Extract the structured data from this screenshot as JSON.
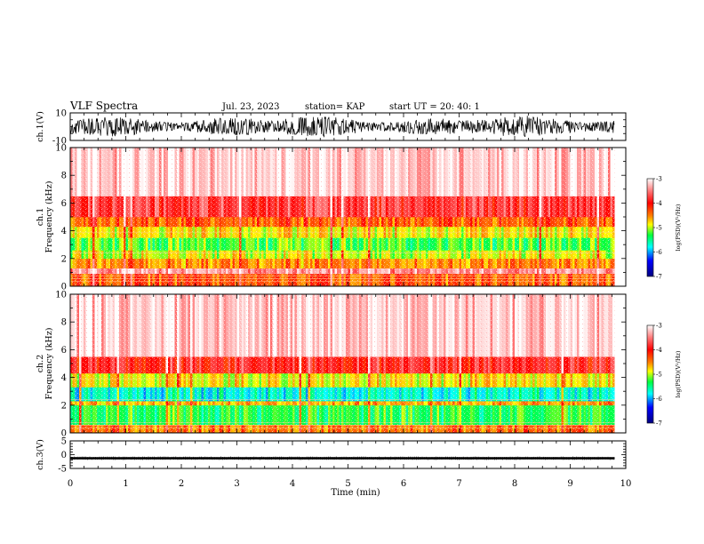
{
  "header": {
    "title": "VLF Spectra",
    "date": "Jul. 23, 2023",
    "station": "station= KAP",
    "start": "start UT = 20: 40: 1"
  },
  "colors": {
    "ramp": [
      "#000080",
      "#0000ff",
      "#00ffff",
      "#00ff40",
      "#ffff00",
      "#ff8000",
      "#ff0000",
      "#ffe0e0",
      "#ffffff"
    ]
  },
  "chart_data": [
    {
      "type": "line",
      "id": "ch1_waveform",
      "ylabel": "ch.1(V)",
      "ylim": [
        -10,
        10
      ],
      "y_ticklabels": [
        "10",
        "-10"
      ],
      "xlim": [
        0,
        10
      ],
      "description_level": "dense noise oscillating between about -8 and 8 V"
    },
    {
      "type": "heatmap",
      "id": "ch1_spectrogram",
      "ylabel": "ch.1 Frequency (kHz)",
      "ylim": [
        0,
        10
      ],
      "y_ticklabels": [
        "0",
        "2",
        "4",
        "6",
        "8",
        "10"
      ],
      "xlim": [
        0,
        10
      ],
      "data_extent_min": 9.8,
      "colorbar": {
        "label": "log(PSD)(V²/Hz)",
        "range": [
          -7,
          -3
        ],
        "ticklabels": [
          "-3",
          "-4",
          "-5",
          "-6",
          "-7"
        ]
      },
      "bands": [
        {
          "from_khz": 0.0,
          "to_khz": 0.9,
          "level": -4.3
        },
        {
          "from_khz": 0.9,
          "to_khz": 1.3,
          "level": -3.4
        },
        {
          "from_khz": 1.3,
          "to_khz": 2.0,
          "level": -4.5
        },
        {
          "from_khz": 2.0,
          "to_khz": 2.6,
          "level": -4.9
        },
        {
          "from_khz": 2.6,
          "to_khz": 3.5,
          "level": -5.2
        },
        {
          "from_khz": 3.5,
          "to_khz": 4.3,
          "level": -4.8
        },
        {
          "from_khz": 4.3,
          "to_khz": 5.0,
          "level": -4.3
        },
        {
          "from_khz": 5.0,
          "to_khz": 6.5,
          "level": -3.8
        },
        {
          "from_khz": 6.5,
          "to_khz": 10.0,
          "level": -3.2
        }
      ]
    },
    {
      "type": "heatmap",
      "id": "ch2_spectrogram",
      "ylabel": "ch.2 Frequency (kHz)",
      "ylim": [
        0,
        10
      ],
      "y_ticklabels": [
        "0",
        "2",
        "4",
        "6",
        "8",
        "10"
      ],
      "xlim": [
        0,
        10
      ],
      "data_extent_min": 9.8,
      "colorbar": {
        "label": "log(PSD)(V²/Hz)",
        "range": [
          -7,
          -3
        ],
        "ticklabels": [
          "-3",
          "-4",
          "-5",
          "-6",
          "-7"
        ]
      },
      "bands": [
        {
          "from_khz": 0.0,
          "to_khz": 0.6,
          "level": -4.4
        },
        {
          "from_khz": 0.6,
          "to_khz": 2.0,
          "level": -5.3
        },
        {
          "from_khz": 2.0,
          "to_khz": 2.3,
          "level": -4.6
        },
        {
          "from_khz": 2.3,
          "to_khz": 3.3,
          "level": -5.7
        },
        {
          "from_khz": 3.3,
          "to_khz": 4.3,
          "level": -4.8
        },
        {
          "from_khz": 4.3,
          "to_khz": 5.5,
          "level": -3.9
        },
        {
          "from_khz": 5.5,
          "to_khz": 10.0,
          "level": -3.2
        }
      ]
    },
    {
      "type": "line",
      "id": "ch3_waveform",
      "ylabel": "ch.3(V)",
      "ylim": [
        -5,
        5
      ],
      "y_ticklabels": [
        "5",
        "0",
        "-5"
      ],
      "xlim": [
        0,
        10
      ],
      "level_v": -1.3,
      "level_halfwidth_v": 0.4
    }
  ],
  "xaxis": {
    "label": "Time (min)",
    "ticklabels": [
      "0",
      "1",
      "2",
      "3",
      "4",
      "5",
      "6",
      "7",
      "8",
      "9",
      "10"
    ]
  }
}
